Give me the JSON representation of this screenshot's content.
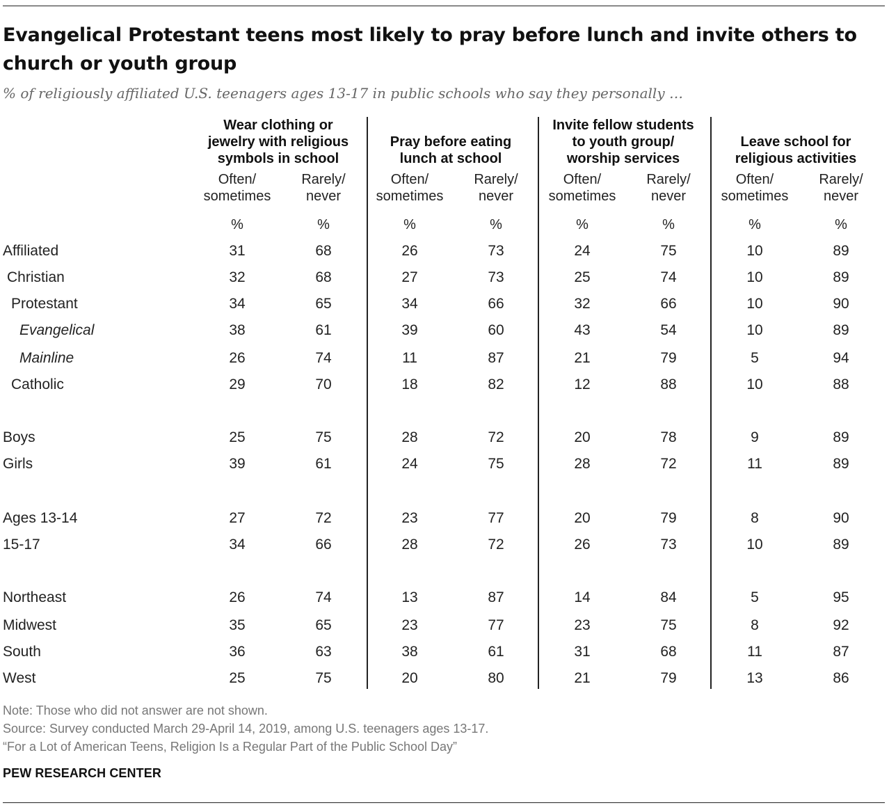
{
  "title": "Evangelical Protestant teens most likely to pray before lunch and invite others to church or youth group",
  "subtitle": "% of religiously affiliated U.S. teenagers ages 13-17 in public schools who say they personally …",
  "columns": [
    {
      "header": [
        "Wear clothing or",
        "jewelry with religious",
        "symbols in school"
      ],
      "sub1": [
        "Often/",
        "sometimes"
      ],
      "sub2": [
        "Rarely/",
        "never"
      ]
    },
    {
      "header": [
        "Pray before eating",
        "lunch at school"
      ],
      "sub1": [
        "Often/",
        "sometimes"
      ],
      "sub2": [
        "Rarely/",
        "never"
      ]
    },
    {
      "header": [
        "Invite fellow students",
        "to youth group/",
        "worship services"
      ],
      "sub1": [
        "Often/",
        "sometimes"
      ],
      "sub2": [
        "Rarely/",
        "never"
      ]
    },
    {
      "header": [
        "Leave school for",
        "religious activities"
      ],
      "sub1": [
        "Often/",
        "sometimes"
      ],
      "sub2": [
        "Rarely/",
        "never"
      ]
    }
  ],
  "pct_symbol": "%",
  "chart_data": {
    "type": "table",
    "rows": [
      {
        "label": "Affiliated",
        "indent": 0,
        "italic": false,
        "values": [
          31,
          68,
          26,
          73,
          24,
          75,
          10,
          89
        ]
      },
      {
        "label": "Christian",
        "indent": 1,
        "italic": false,
        "values": [
          32,
          68,
          27,
          73,
          25,
          74,
          10,
          89
        ]
      },
      {
        "label": "Protestant",
        "indent": 2,
        "italic": false,
        "values": [
          34,
          65,
          34,
          66,
          32,
          66,
          10,
          90
        ]
      },
      {
        "label": "Evangelical",
        "indent": 3,
        "italic": true,
        "values": [
          38,
          61,
          39,
          60,
          43,
          54,
          10,
          89
        ]
      },
      {
        "label": "Mainline",
        "indent": 3,
        "italic": true,
        "values": [
          26,
          74,
          11,
          87,
          21,
          79,
          5,
          94
        ]
      },
      {
        "label": "Catholic",
        "indent": 2,
        "italic": false,
        "values": [
          29,
          70,
          18,
          82,
          12,
          88,
          10,
          88
        ]
      },
      {
        "label": "Boys",
        "indent": 0,
        "italic": false,
        "values": [
          25,
          75,
          28,
          72,
          20,
          78,
          9,
          89
        ]
      },
      {
        "label": "Girls",
        "indent": 0,
        "italic": false,
        "values": [
          39,
          61,
          24,
          75,
          28,
          72,
          11,
          89
        ]
      },
      {
        "label": "Ages 13-14",
        "indent": 0,
        "italic": false,
        "values": [
          27,
          72,
          23,
          77,
          20,
          79,
          8,
          90
        ]
      },
      {
        "label": "15-17",
        "indent": 0,
        "italic": false,
        "values": [
          34,
          66,
          28,
          72,
          26,
          73,
          10,
          89
        ]
      },
      {
        "label": "Northeast",
        "indent": 0,
        "italic": false,
        "values": [
          26,
          74,
          13,
          87,
          14,
          84,
          5,
          95
        ]
      },
      {
        "label": "Midwest",
        "indent": 0,
        "italic": false,
        "values": [
          35,
          65,
          23,
          77,
          23,
          75,
          8,
          92
        ]
      },
      {
        "label": "South",
        "indent": 0,
        "italic": false,
        "values": [
          36,
          63,
          38,
          61,
          31,
          68,
          11,
          87
        ]
      },
      {
        "label": "West",
        "indent": 0,
        "italic": false,
        "values": [
          25,
          75,
          20,
          80,
          21,
          79,
          13,
          86
        ]
      }
    ]
  },
  "notes": {
    "note": "Note: Those who did not answer are not shown.",
    "source": "Source: Survey conducted March 29-April 14, 2019, among U.S. teenagers ages 13-17.",
    "report": "“For a Lot of American Teens, Religion Is a Regular Part of the Public School Day”"
  },
  "brand": "PEW RESEARCH CENTER"
}
